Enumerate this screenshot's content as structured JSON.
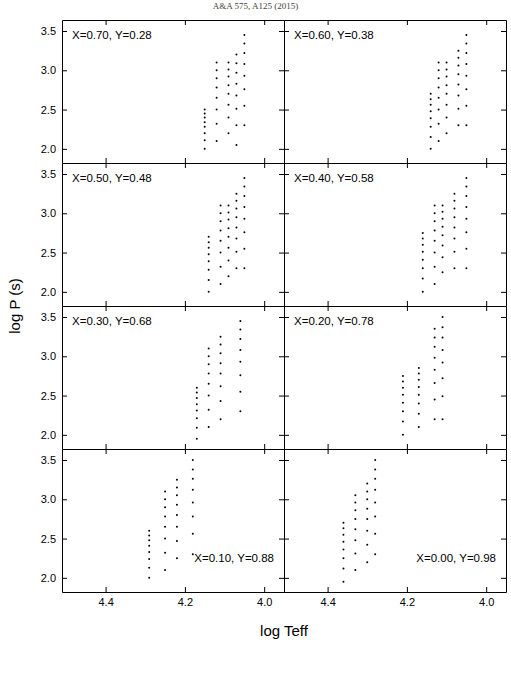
{
  "figure": {
    "header": "A&A 575, A125 (2015)",
    "xlabel": "log Teff",
    "ylabel": "log P (s)"
  },
  "chart_data": [
    {
      "type": "scatter",
      "annotations": [
        "X=0.70, Y=0.28"
      ],
      "tick_labels": "y",
      "xlim": [
        4.51,
        3.95
      ],
      "ylim": [
        1.82,
        3.64
      ],
      "xticks": [
        4.4,
        4.2,
        {
          "value": 4,
          "label": "4.0"
        }
      ],
      "yticks": [
        {
          "value": 2,
          "label": "2.0"
        },
        2.5,
        {
          "value": 3,
          "label": "3.0"
        },
        3.5
      ],
      "x": [
        4.15,
        4.15,
        4.15,
        4.15,
        4.15,
        4.15,
        4.15,
        4.15,
        4.12,
        4.12,
        4.12,
        4.12,
        4.12,
        4.12,
        4.12,
        4.12,
        4.09,
        4.09,
        4.09,
        4.09,
        4.09,
        4.09,
        4.09,
        4.09,
        4.07,
        4.07,
        4.07,
        4.07,
        4.07,
        4.07,
        4.07,
        4.07,
        4.05,
        4.05,
        4.05,
        4.05,
        4.05,
        4.05,
        4.05,
        4.05
      ],
      "y": [
        2.0,
        2.11,
        2.2,
        2.28,
        2.34,
        2.4,
        2.45,
        2.5,
        2.1,
        2.32,
        2.5,
        2.65,
        2.78,
        2.9,
        3.0,
        3.1,
        2.2,
        2.4,
        2.56,
        2.7,
        2.81,
        2.92,
        3.01,
        3.1,
        2.05,
        2.3,
        2.51,
        2.68,
        2.83,
        2.97,
        3.09,
        3.2,
        2.3,
        2.55,
        2.76,
        2.93,
        3.08,
        3.22,
        3.34,
        3.45
      ]
    },
    {
      "type": "scatter",
      "annotations": [
        "X=0.60, Y=0.38"
      ],
      "tick_labels": false,
      "xlim": [
        4.51,
        3.95
      ],
      "ylim": [
        1.82,
        3.64
      ],
      "xticks": [
        4.4,
        4.2,
        {
          "value": 4,
          "label": "4.0"
        }
      ],
      "yticks": [
        {
          "value": 2,
          "label": "2.0"
        },
        2.5,
        {
          "value": 3,
          "label": "3.0"
        },
        3.5
      ],
      "x": [
        4.14,
        4.14,
        4.14,
        4.14,
        4.14,
        4.14,
        4.14,
        4.14,
        4.12,
        4.12,
        4.12,
        4.12,
        4.12,
        4.12,
        4.12,
        4.12,
        4.1,
        4.1,
        4.1,
        4.1,
        4.1,
        4.1,
        4.1,
        4.1,
        4.07,
        4.07,
        4.07,
        4.07,
        4.07,
        4.07,
        4.07,
        4.07,
        4.05,
        4.05,
        4.05,
        4.05,
        4.05,
        4.05,
        4.05,
        4.05
      ],
      "y": [
        2.0,
        2.15,
        2.28,
        2.39,
        2.48,
        2.56,
        2.63,
        2.7,
        2.1,
        2.32,
        2.5,
        2.65,
        2.78,
        2.9,
        3.0,
        3.1,
        2.2,
        2.4,
        2.56,
        2.7,
        2.81,
        2.92,
        3.01,
        3.1,
        2.3,
        2.51,
        2.68,
        2.82,
        2.95,
        3.06,
        3.16,
        3.25,
        2.3,
        2.55,
        2.76,
        2.93,
        3.08,
        3.22,
        3.34,
        3.45
      ]
    },
    {
      "type": "scatter",
      "annotations": [
        "X=0.50, Y=0.48"
      ],
      "tick_labels": "y",
      "xlim": [
        4.51,
        3.95
      ],
      "ylim": [
        1.82,
        3.64
      ],
      "xticks": [
        4.4,
        4.2,
        {
          "value": 4,
          "label": "4.0"
        }
      ],
      "yticks": [
        {
          "value": 2,
          "label": "2.0"
        },
        2.5,
        {
          "value": 3,
          "label": "3.0"
        },
        3.5
      ],
      "x": [
        4.14,
        4.14,
        4.14,
        4.14,
        4.14,
        4.14,
        4.14,
        4.14,
        4.11,
        4.11,
        4.11,
        4.11,
        4.11,
        4.11,
        4.11,
        4.11,
        4.09,
        4.09,
        4.09,
        4.09,
        4.09,
        4.09,
        4.09,
        4.09,
        4.07,
        4.07,
        4.07,
        4.07,
        4.07,
        4.07,
        4.07,
        4.07,
        4.05,
        4.05,
        4.05,
        4.05,
        4.05,
        4.05,
        4.05,
        4.05
      ],
      "y": [
        2.0,
        2.15,
        2.28,
        2.39,
        2.48,
        2.56,
        2.63,
        2.7,
        2.1,
        2.32,
        2.5,
        2.65,
        2.78,
        2.9,
        3.0,
        3.1,
        2.2,
        2.4,
        2.56,
        2.7,
        2.81,
        2.92,
        3.01,
        3.1,
        2.3,
        2.51,
        2.68,
        2.82,
        2.95,
        3.06,
        3.16,
        3.25,
        2.3,
        2.55,
        2.76,
        2.93,
        3.08,
        3.22,
        3.34,
        3.45
      ]
    },
    {
      "type": "scatter",
      "annotations": [
        "X=0.40, Y=0.58"
      ],
      "tick_labels": false,
      "xlim": [
        4.51,
        3.95
      ],
      "ylim": [
        1.82,
        3.64
      ],
      "xticks": [
        4.4,
        4.2,
        {
          "value": 4,
          "label": "4.0"
        }
      ],
      "yticks": [
        {
          "value": 2,
          "label": "2.0"
        },
        2.5,
        {
          "value": 3,
          "label": "3.0"
        },
        3.5
      ],
      "x": [
        4.16,
        4.16,
        4.16,
        4.16,
        4.16,
        4.16,
        4.16,
        4.16,
        4.13,
        4.13,
        4.13,
        4.13,
        4.13,
        4.13,
        4.13,
        4.13,
        4.11,
        4.11,
        4.11,
        4.11,
        4.11,
        4.11,
        4.11,
        4.11,
        4.08,
        4.08,
        4.08,
        4.08,
        4.08,
        4.08,
        4.08,
        4.08,
        4.05,
        4.05,
        4.05,
        4.05,
        4.05,
        4.05,
        4.05,
        4.05
      ],
      "y": [
        2.0,
        2.17,
        2.3,
        2.41,
        2.51,
        2.6,
        2.68,
        2.75,
        2.1,
        2.32,
        2.5,
        2.65,
        2.78,
        2.9,
        3.0,
        3.1,
        2.25,
        2.44,
        2.59,
        2.72,
        2.83,
        2.93,
        3.02,
        3.1,
        2.3,
        2.51,
        2.68,
        2.82,
        2.95,
        3.06,
        3.16,
        3.25,
        2.3,
        2.55,
        2.76,
        2.93,
        3.08,
        3.22,
        3.34,
        3.45
      ]
    },
    {
      "type": "scatter",
      "annotations": [
        "X=0.30, Y=0.68"
      ],
      "tick_labels": "y",
      "xlim": [
        4.51,
        3.95
      ],
      "ylim": [
        1.82,
        3.64
      ],
      "xticks": [
        4.4,
        4.2,
        {
          "value": 4,
          "label": "4.0"
        }
      ],
      "yticks": [
        {
          "value": 2,
          "label": "2.0"
        },
        2.5,
        {
          "value": 3,
          "label": "3.0"
        },
        3.5
      ],
      "x": [
        4.17,
        4.17,
        4.17,
        4.17,
        4.17,
        4.17,
        4.17,
        4.17,
        4.14,
        4.14,
        4.14,
        4.14,
        4.14,
        4.14,
        4.14,
        4.14,
        4.11,
        4.11,
        4.11,
        4.11,
        4.11,
        4.11,
        4.11,
        4.11,
        4.06,
        4.06,
        4.06,
        4.06,
        4.06,
        4.06,
        4.06,
        4.06
      ],
      "y": [
        1.95,
        2.09,
        2.21,
        2.31,
        2.39,
        2.47,
        2.54,
        2.6,
        2.1,
        2.32,
        2.5,
        2.65,
        2.78,
        2.9,
        3.0,
        3.1,
        2.2,
        2.43,
        2.62,
        2.78,
        2.91,
        3.04,
        3.15,
        3.25,
        2.3,
        2.55,
        2.76,
        2.93,
        3.08,
        3.22,
        3.34,
        3.45
      ]
    },
    {
      "type": "scatter",
      "annotations": [
        "X=0.20, Y=0.78"
      ],
      "tick_labels": false,
      "xlim": [
        4.51,
        3.95
      ],
      "ylim": [
        1.82,
        3.64
      ],
      "xticks": [
        4.4,
        4.2,
        {
          "value": 4,
          "label": "4.0"
        }
      ],
      "yticks": [
        {
          "value": 2,
          "label": "2.0"
        },
        2.5,
        {
          "value": 3,
          "label": "3.0"
        },
        3.5
      ],
      "x": [
        4.21,
        4.21,
        4.21,
        4.21,
        4.21,
        4.21,
        4.21,
        4.21,
        4.17,
        4.17,
        4.17,
        4.17,
        4.17,
        4.17,
        4.17,
        4.17,
        4.13,
        4.13,
        4.13,
        4.13,
        4.13,
        4.13,
        4.13,
        4.13,
        4.11,
        4.11,
        4.11,
        4.11,
        4.11,
        4.11,
        4.11,
        4.11
      ],
      "y": [
        2.0,
        2.17,
        2.3,
        2.41,
        2.51,
        2.6,
        2.68,
        2.75,
        2.1,
        2.27,
        2.4,
        2.51,
        2.61,
        2.7,
        2.78,
        2.85,
        2.2,
        2.45,
        2.66,
        2.83,
        2.98,
        3.12,
        3.24,
        3.35,
        2.2,
        2.49,
        2.72,
        2.92,
        3.08,
        3.24,
        3.37,
        3.5
      ]
    },
    {
      "type": "scatter",
      "annotations": [
        "X=0.10, Y=0.88"
      ],
      "xlim": [
        4.51,
        3.95
      ],
      "ylim": [
        1.82,
        3.64
      ],
      "xticks": [
        4.4,
        4.2,
        {
          "value": 4,
          "label": "4.0"
        }
      ],
      "yticks": [
        {
          "value": 2,
          "label": "2.0"
        },
        2.5,
        {
          "value": 3,
          "label": "3.0"
        },
        3.5
      ],
      "x": [
        4.29,
        4.29,
        4.29,
        4.29,
        4.29,
        4.29,
        4.29,
        4.29,
        4.25,
        4.25,
        4.25,
        4.25,
        4.25,
        4.25,
        4.25,
        4.25,
        4.22,
        4.22,
        4.22,
        4.22,
        4.22,
        4.22,
        4.22,
        4.22,
        4.18,
        4.18,
        4.18,
        4.18,
        4.18,
        4.18,
        4.18,
        4.18
      ],
      "y": [
        2.0,
        2.13,
        2.24,
        2.33,
        2.41,
        2.48,
        2.54,
        2.6,
        2.1,
        2.32,
        2.5,
        2.65,
        2.78,
        2.9,
        3.0,
        3.1,
        2.25,
        2.47,
        2.65,
        2.8,
        2.93,
        3.05,
        3.15,
        3.25,
        2.3,
        2.56,
        2.78,
        2.96,
        3.12,
        3.26,
        3.38,
        3.5
      ]
    },
    {
      "type": "scatter",
      "annotations": [
        "X=0.00, Y=0.98"
      ],
      "tick_labels": "x",
      "xlim": [
        4.51,
        3.95
      ],
      "ylim": [
        1.82,
        3.64
      ],
      "xticks": [
        4.4,
        4.2,
        {
          "value": 4,
          "label": "4.0"
        }
      ],
      "yticks": [
        {
          "value": 2,
          "label": "2.0"
        },
        2.5,
        {
          "value": 3,
          "label": "3.0"
        },
        3.5
      ],
      "x": [
        4.36,
        4.36,
        4.36,
        4.36,
        4.36,
        4.36,
        4.36,
        4.36,
        4.33,
        4.33,
        4.33,
        4.33,
        4.33,
        4.33,
        4.33,
        4.33,
        4.3,
        4.3,
        4.3,
        4.3,
        4.3,
        4.3,
        4.3,
        4.3,
        4.28,
        4.28,
        4.28,
        4.28,
        4.28,
        4.28,
        4.28,
        4.28
      ],
      "y": [
        1.95,
        2.12,
        2.25,
        2.36,
        2.46,
        2.55,
        2.63,
        2.7,
        2.1,
        2.31,
        2.48,
        2.62,
        2.75,
        2.86,
        2.96,
        3.05,
        2.2,
        2.42,
        2.6,
        2.75,
        2.88,
        3.0,
        3.1,
        3.2,
        2.3,
        2.56,
        2.78,
        2.96,
        3.12,
        3.26,
        3.38,
        3.5
      ]
    }
  ]
}
